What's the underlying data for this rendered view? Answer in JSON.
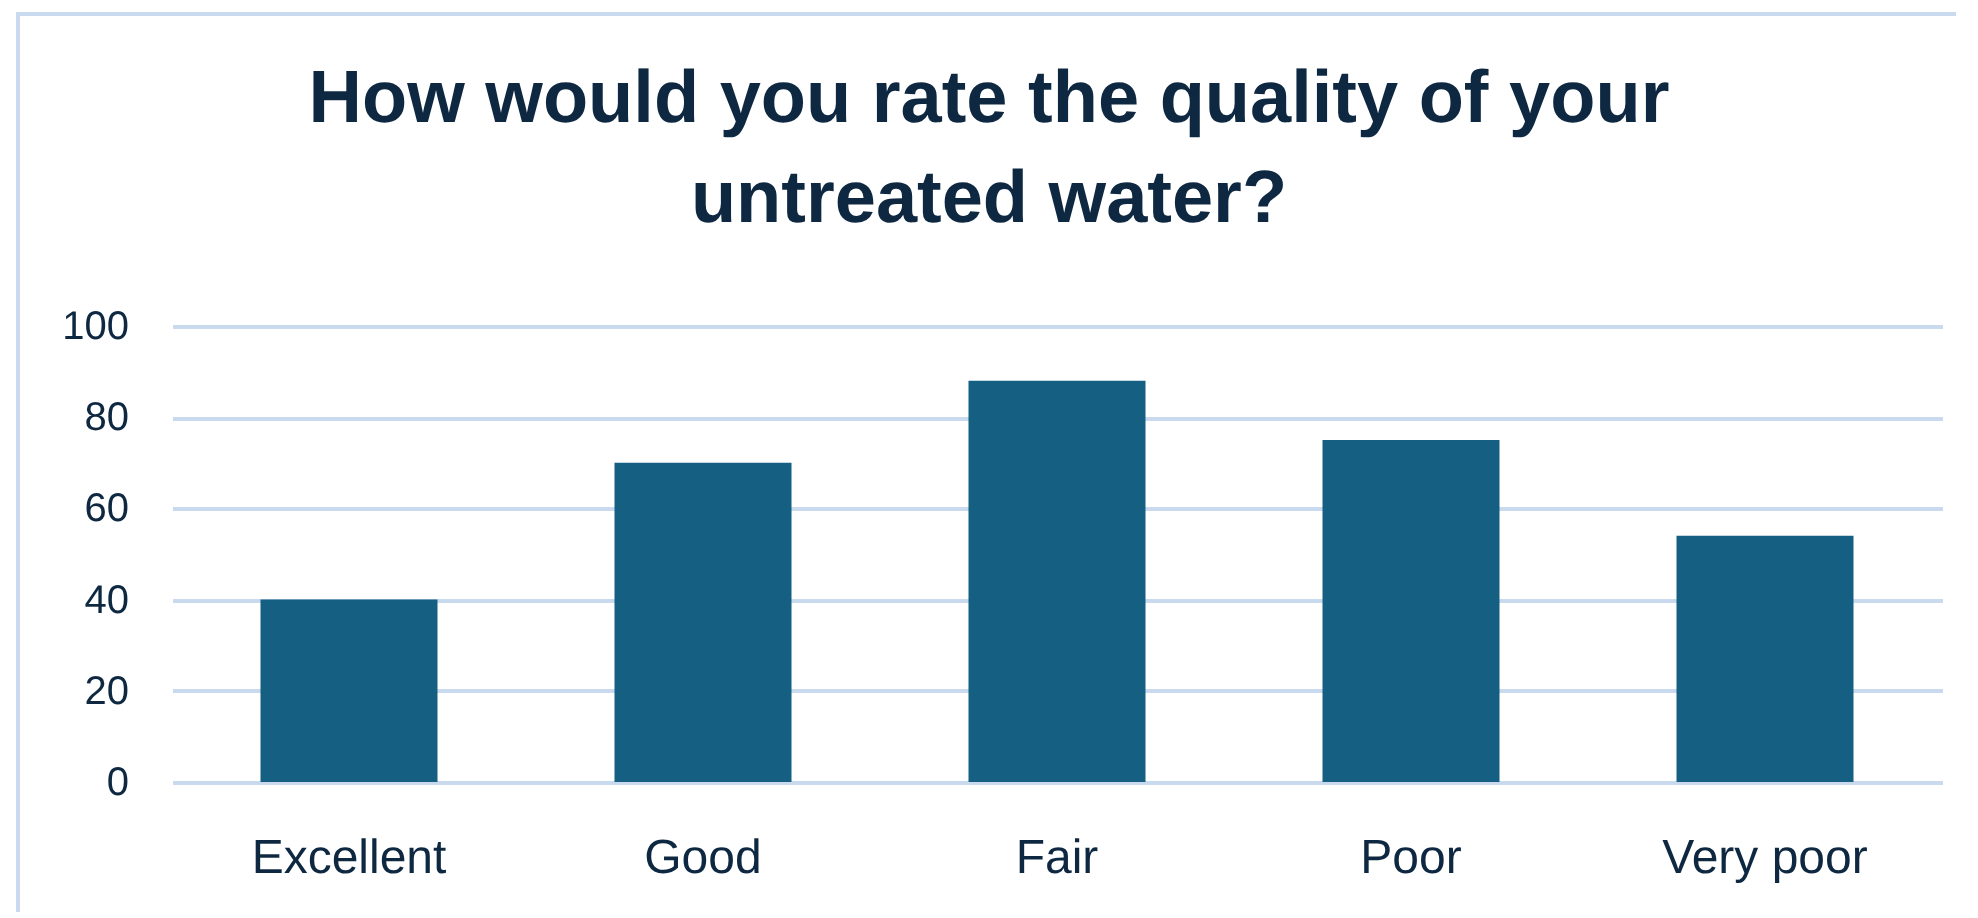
{
  "chart_data": {
    "type": "bar",
    "title": "How would you rate the quality of your untreated water?",
    "categories": [
      "Excellent",
      "Good",
      "Fair",
      "Poor",
      "Very poor"
    ],
    "values": [
      40,
      70,
      88,
      75,
      54
    ],
    "color": "#155f82",
    "ylim": [
      0,
      100
    ],
    "yticks": [
      0,
      20,
      40,
      60,
      80,
      100
    ],
    "grid": "y"
  }
}
